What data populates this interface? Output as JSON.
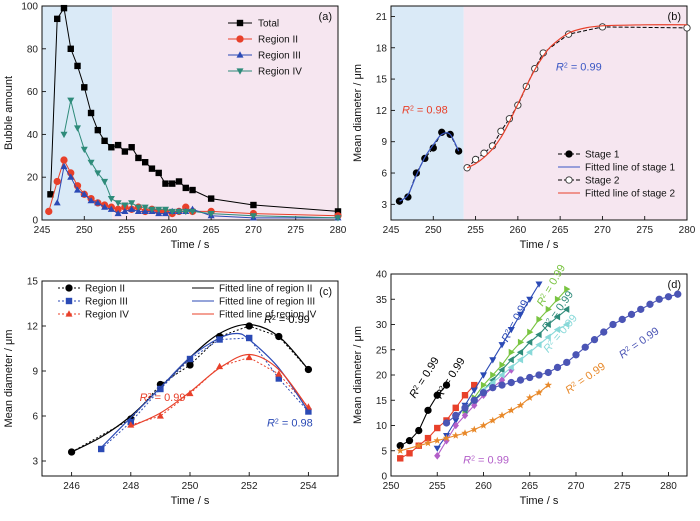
{
  "chart_data": [
    {
      "panel": "(a)",
      "type": "line",
      "xlabel": "Time / s",
      "ylabel": "Bubble amount",
      "xlim": [
        245,
        280
      ],
      "ylim": [
        0,
        100
      ],
      "xticks": [
        245,
        250,
        255,
        260,
        265,
        270,
        275,
        280
      ],
      "yticks": [
        0,
        20,
        40,
        60,
        80,
        100
      ],
      "shaded_regions": [
        {
          "from": 245,
          "to": 253.3,
          "color": "#daeaf7"
        },
        {
          "from": 253.3,
          "to": 280,
          "color": "#f6e6f0"
        }
      ],
      "legend": "top-right",
      "series": [
        {
          "name": "Total",
          "color": "#000000",
          "marker": "square",
          "x": [
            246,
            246.8,
            247.6,
            248.4,
            249.2,
            250,
            250.8,
            251.6,
            252.4,
            253.2,
            254,
            254.8,
            255.6,
            256.4,
            257.2,
            258,
            258.8,
            259.6,
            260.4,
            261.2,
            262,
            262.8,
            265,
            270,
            280
          ],
          "y": [
            12,
            94,
            99,
            80,
            72,
            62,
            50,
            42,
            37,
            34,
            35,
            32,
            34,
            29,
            27,
            24,
            22,
            17,
            17,
            18,
            15,
            14,
            10,
            7,
            4
          ]
        },
        {
          "name": "Region II",
          "color": "#e8402a",
          "marker": "circle",
          "x": [
            245.8,
            246.8,
            247.6,
            248.4,
            249.2,
            250,
            250.8,
            251.6,
            252.4,
            253.2,
            254,
            254.8,
            255.6,
            256.4,
            257.2,
            258,
            258.8,
            259.6,
            260.4,
            261.2,
            262,
            262.8,
            265,
            270,
            280
          ],
          "y": [
            4,
            18,
            28,
            22,
            16,
            12,
            10,
            8,
            7,
            6,
            5,
            6,
            5,
            6,
            4,
            5,
            4,
            4,
            3,
            4,
            6,
            4,
            4,
            3,
            2
          ]
        },
        {
          "name": "Region III",
          "color": "#2b4ab5",
          "marker": "triangle-up",
          "x": [
            246.8,
            247.6,
            248.4,
            249.2,
            250,
            250.8,
            251.6,
            252.4,
            253.2,
            254,
            254.8,
            255.6,
            256.4,
            257.2,
            258,
            258.8,
            259.6,
            260.4,
            261.2,
            262,
            262.8,
            265,
            270,
            280
          ],
          "y": [
            8,
            25,
            20,
            14,
            12,
            9,
            8,
            6,
            5,
            3,
            4,
            5,
            4,
            4,
            4,
            3,
            3,
            4,
            4,
            4,
            5,
            2,
            1,
            1
          ]
        },
        {
          "name": "Region IV",
          "color": "#2e8b7a",
          "marker": "triangle-down",
          "x": [
            247.6,
            248.4,
            249.2,
            250,
            250.8,
            251.6,
            252.4,
            253.2,
            254,
            254.8,
            255.6,
            256.4,
            257.2,
            258,
            258.8,
            259.6,
            260.4,
            261.2,
            262,
            262.8,
            265,
            270,
            280
          ],
          "y": [
            40,
            56,
            43,
            33,
            27,
            22,
            18,
            10,
            8,
            7,
            8,
            6,
            6,
            5,
            5,
            5,
            4,
            4,
            4,
            4,
            3,
            2,
            1
          ]
        }
      ]
    },
    {
      "panel": "(b)",
      "type": "line",
      "xlabel": "Time / s",
      "ylabel": "Mean diameter / μm",
      "xlim": [
        245,
        280
      ],
      "ylim": [
        1.5,
        22
      ],
      "xticks": [
        245,
        250,
        255,
        260,
        265,
        270,
        275,
        280
      ],
      "yticks": [
        3,
        6,
        9,
        12,
        15,
        18,
        21
      ],
      "shaded_regions": [
        {
          "from": 245,
          "to": 253.6,
          "color": "#daeaf7"
        },
        {
          "from": 253.6,
          "to": 280,
          "color": "#f6e6f0"
        }
      ],
      "legend": "bottom-right",
      "series": [
        {
          "name": "Stage 1",
          "color": "#000000",
          "marker": "circle-filled",
          "dash": "4,2",
          "x": [
            246,
            247,
            248,
            249,
            250,
            251,
            252,
            253
          ],
          "y": [
            3.3,
            3.7,
            6.0,
            7.4,
            8.4,
            9.9,
            9.7,
            8.1
          ]
        },
        {
          "name": "Fitted line of stage 1",
          "color": "#3a57c4",
          "fit": true,
          "x": [
            246,
            247,
            248,
            249,
            250,
            251,
            252,
            253
          ],
          "y": [
            3.3,
            3.9,
            5.8,
            7.5,
            8.7,
            9.7,
            9.7,
            8.1
          ]
        },
        {
          "name": "Stage 2",
          "color": "#000000",
          "marker": "circle-open",
          "dash": "4,2",
          "x": [
            254,
            255,
            256,
            257,
            258,
            259,
            260,
            261,
            262,
            263,
            266,
            270,
            280
          ],
          "y": [
            6.5,
            7.3,
            7.9,
            8.6,
            10.0,
            11.2,
            12.5,
            14.3,
            16.0,
            17.5,
            19.3,
            20.0,
            19.9
          ]
        },
        {
          "name": "Fitted line of stage 2",
          "color": "#e8402a",
          "fit": true,
          "x": [
            254,
            255,
            256,
            257,
            258,
            259,
            260,
            261,
            262,
            263,
            264,
            266,
            268,
            270,
            275,
            280
          ],
          "y": [
            6.5,
            6.9,
            7.5,
            8.3,
            9.4,
            10.9,
            12.6,
            14.3,
            15.9,
            17.2,
            18.2,
            19.4,
            19.9,
            20.1,
            20.2,
            20.2
          ]
        }
      ],
      "annotations": [
        {
          "text": "= 0.98",
          "x": 246.3,
          "y": 11.7,
          "color": "#e8402a"
        },
        {
          "text": "= 0.99",
          "x": 264.5,
          "y": 15.8,
          "color": "#3a57c4"
        }
      ]
    },
    {
      "panel": "(c)",
      "type": "line",
      "xlabel": "Time / s",
      "ylabel": "Mean diameter / μm",
      "xlim": [
        245,
        255
      ],
      "ylim": [
        2,
        15
      ],
      "xticks": [
        246,
        248,
        250,
        252,
        254
      ],
      "yticks": [
        3,
        6,
        9,
        12,
        15
      ],
      "legend": "top",
      "series": [
        {
          "name": "Region II",
          "color": "#000000",
          "marker": "circle",
          "dash": "2,2",
          "x": [
            246,
            248,
            249,
            250,
            251,
            252,
            253,
            254
          ],
          "y": [
            3.6,
            5.8,
            8.1,
            9.4,
            11.3,
            12.0,
            11.3,
            9.1
          ]
        },
        {
          "name": "Region III",
          "color": "#2b4ab5",
          "marker": "square",
          "dash": "2,2",
          "x": [
            247,
            248,
            249,
            250,
            251,
            252,
            253,
            254
          ],
          "y": [
            3.8,
            5.6,
            7.8,
            9.8,
            11.1,
            11.2,
            8.5,
            6.3
          ]
        },
        {
          "name": "Region IV",
          "color": "#e8402a",
          "marker": "triangle-up",
          "dash": "2,2",
          "x": [
            248,
            249,
            250,
            251,
            252,
            253,
            254
          ],
          "y": [
            5.4,
            6.0,
            7.5,
            9.3,
            9.9,
            8.8,
            6.6
          ]
        },
        {
          "name": "Fitted line of region II",
          "color": "#000000",
          "fit": true,
          "x": [
            246,
            247,
            248,
            249,
            250,
            251,
            252,
            253,
            254
          ],
          "y": [
            3.6,
            4.6,
            6.0,
            7.9,
            9.9,
            11.5,
            12.1,
            11.3,
            9.1
          ]
        },
        {
          "name": "Fitted line of region III",
          "color": "#2b4ab5",
          "fit": true,
          "x": [
            247,
            248,
            249,
            250,
            251,
            251.6,
            252,
            253,
            254
          ],
          "y": [
            3.9,
            5.9,
            7.9,
            9.9,
            11.2,
            11.5,
            11.1,
            9.2,
            6.3
          ]
        },
        {
          "name": "Fitted line of region IV",
          "color": "#e8402a",
          "fit": true,
          "x": [
            248,
            249,
            250,
            251,
            252,
            253,
            254
          ],
          "y": [
            5.3,
            6.2,
            7.6,
            9.2,
            10.1,
            9.1,
            6.5
          ]
        }
      ],
      "annotations": [
        {
          "text": "= 0.99",
          "x": 252.5,
          "y": 12.2,
          "color": "#000000"
        },
        {
          "text": "= 0.99",
          "x": 248.3,
          "y": 7.0,
          "color": "#e8402a"
        },
        {
          "text": "= 0.98",
          "x": 252.6,
          "y": 5.3,
          "color": "#2b4ab5"
        }
      ]
    },
    {
      "panel": "(d)",
      "type": "scatter",
      "xlabel": "Time / s",
      "ylabel": "Mean diameter / μm",
      "xlim": [
        250,
        282
      ],
      "ylim": [
        0,
        40
      ],
      "xticks": [
        250,
        255,
        260,
        265,
        270,
        275,
        280
      ],
      "yticks": [
        0,
        5,
        10,
        15,
        20,
        25,
        30,
        35,
        40
      ],
      "series": [
        {
          "color": "#000000",
          "marker": "circle",
          "x": [
            251,
            252,
            253,
            254,
            255,
            256
          ],
          "y": [
            6,
            7,
            9,
            13,
            16,
            18
          ]
        },
        {
          "color": "#e8402a",
          "marker": "square",
          "x": [
            251,
            252,
            253,
            254,
            255,
            256,
            257,
            258,
            259
          ],
          "y": [
            3.5,
            4.5,
            6,
            7.5,
            9.5,
            11,
            13.5,
            16,
            18
          ]
        },
        {
          "color": "#2b4ab5",
          "marker": "triangle-down",
          "x": [
            255,
            256,
            257,
            258,
            259,
            260,
            261,
            262,
            263,
            264,
            265,
            266
          ],
          "y": [
            5.5,
            8,
            11,
            14,
            17,
            20,
            23,
            26,
            29,
            32,
            35,
            38
          ]
        },
        {
          "color": "#b35fc9",
          "marker": "diamond",
          "x": [
            255,
            256,
            257,
            258,
            259,
            260,
            261,
            262,
            263
          ],
          "y": [
            4,
            7,
            10,
            12,
            14,
            16,
            17.5,
            19,
            21
          ]
        },
        {
          "color": "#79c440",
          "marker": "triangle-right",
          "x": [
            258,
            259,
            260,
            261,
            262,
            263,
            264,
            265,
            266,
            267,
            268,
            269
          ],
          "y": [
            13,
            15.5,
            18,
            20,
            22,
            24.5,
            26.5,
            28.5,
            31,
            33,
            35,
            37
          ]
        },
        {
          "color": "#2e8b7a",
          "marker": "triangle-left",
          "x": [
            258,
            259,
            260,
            261,
            262,
            263,
            264,
            265,
            266,
            267,
            268,
            269
          ],
          "y": [
            13,
            15,
            17,
            19,
            21,
            23,
            24.5,
            26.5,
            28,
            30,
            31.5,
            33
          ]
        },
        {
          "color": "#88d9d9",
          "marker": "triangle-left",
          "x": [
            260,
            261,
            262,
            263,
            264,
            265,
            266,
            267,
            268,
            269
          ],
          "y": [
            17,
            18.5,
            20,
            21.5,
            23,
            24.5,
            26,
            27.5,
            29,
            30
          ]
        },
        {
          "color": "#e8892a",
          "marker": "star",
          "x": [
            251,
            253,
            254,
            255,
            256,
            257,
            258,
            259,
            260,
            261,
            262,
            263,
            264,
            265,
            266,
            267
          ],
          "y": [
            5,
            6,
            6.5,
            7,
            7.5,
            8,
            8.5,
            9.2,
            10,
            11,
            12,
            13,
            14,
            15.5,
            16.5,
            18
          ]
        },
        {
          "color": "#4b55b5",
          "marker": "circle",
          "x": [
            256,
            257,
            258,
            259,
            260,
            261,
            262,
            263,
            264,
            265,
            266,
            267,
            268,
            269,
            270,
            271,
            272,
            273,
            274,
            275,
            276,
            277,
            278,
            279,
            280,
            281
          ],
          "y": [
            10.5,
            12,
            13.5,
            15,
            16.5,
            17.5,
            18,
            18.5,
            19,
            19.5,
            20,
            20.5,
            21.5,
            22.5,
            24,
            25.5,
            27,
            28.5,
            30,
            31,
            32,
            33,
            34,
            35,
            35.5,
            36
          ]
        }
      ],
      "annotations": [
        {
          "text": "= 0.99",
          "x": 252.6,
          "y": 15.3,
          "color": "#000000",
          "rotate": -58
        },
        {
          "text": "= 0.99",
          "x": 255.4,
          "y": 15.2,
          "color": "#000000",
          "rotate": -58
        },
        {
          "text": "= 0.99",
          "x": 262.6,
          "y": 26.4,
          "color": "#2b4ab5",
          "rotate": -62
        },
        {
          "text": "= 0.99",
          "x": 266.4,
          "y": 33.5,
          "color": "#79c440",
          "rotate": -60
        },
        {
          "text": "= 0.99",
          "x": 266.9,
          "y": 28.6,
          "color": "#2e8b7a",
          "rotate": -55
        },
        {
          "text": "= 0.99",
          "x": 267.0,
          "y": 24.3,
          "color": "#88d9d9",
          "rotate": -50
        },
        {
          "text": "= 0.99",
          "x": 275.0,
          "y": 23.2,
          "color": "#4b55b5",
          "rotate": -35
        },
        {
          "text": "= 0.99",
          "x": 269.2,
          "y": 16.2,
          "color": "#e8892a",
          "rotate": -35
        },
        {
          "text": "= 0.99",
          "x": 257.8,
          "y": 2.5,
          "color": "#b35fc9",
          "rotate": 0
        }
      ]
    }
  ]
}
